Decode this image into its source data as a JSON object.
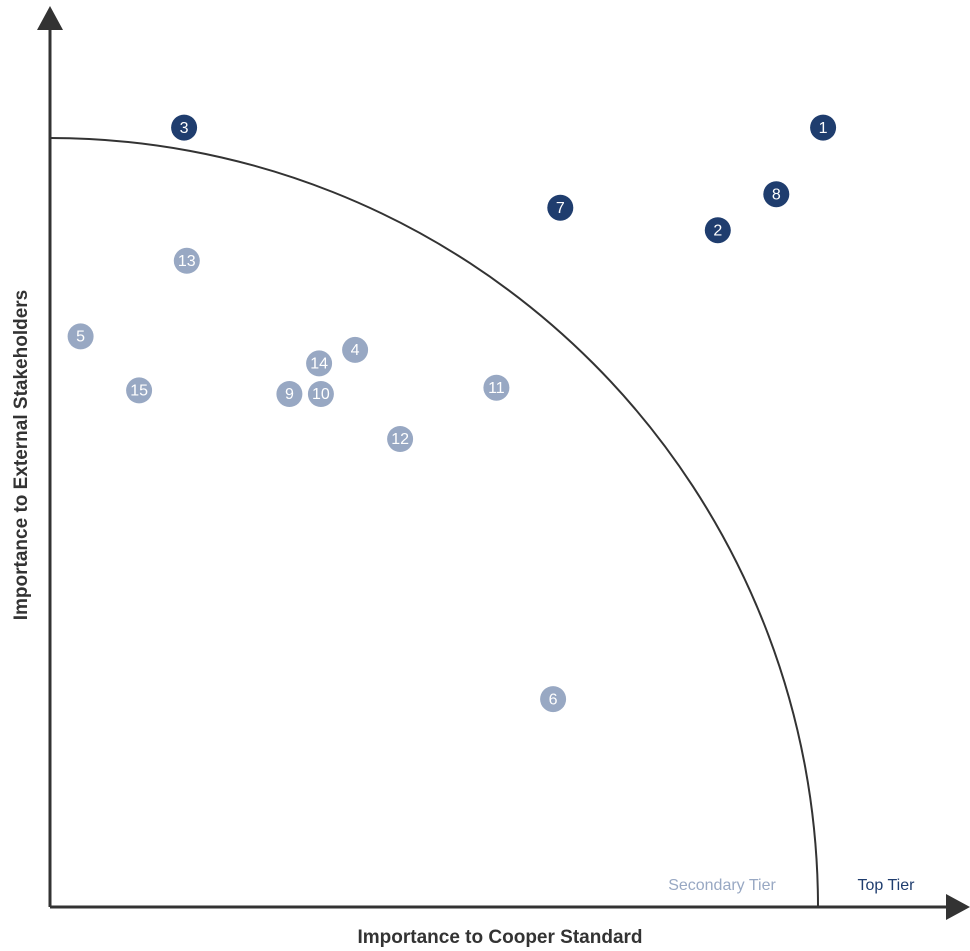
{
  "chart_data": {
    "type": "scatter",
    "x_label": "Importance to Cooper Standard",
    "y_label": "Importance to External Stakeholders",
    "xlim": [
      0,
      100
    ],
    "ylim": [
      0,
      100
    ],
    "series": [
      {
        "name": "Secondary Tier",
        "color": "#98a8c3",
        "labels": [
          "13",
          "5",
          "15",
          "14",
          "4",
          "9",
          "10",
          "11",
          "12",
          "6"
        ],
        "x": [
          15.2,
          3.4,
          9.9,
          29.9,
          33.9,
          26.6,
          30.1,
          49.6,
          38.9,
          55.9
        ],
        "values": [
          71.8,
          63.4,
          57.4,
          60.4,
          61.9,
          57.0,
          57.0,
          57.7,
          52.0,
          23.1
        ]
      },
      {
        "name": "Top Tier",
        "color": "#1f3d6e",
        "labels": [
          "1",
          "8",
          "2",
          "7",
          "3"
        ],
        "x": [
          85.9,
          80.7,
          74.2,
          56.7,
          14.9
        ],
        "values": [
          86.6,
          79.2,
          75.2,
          77.7,
          86.6
        ]
      }
    ]
  }
}
